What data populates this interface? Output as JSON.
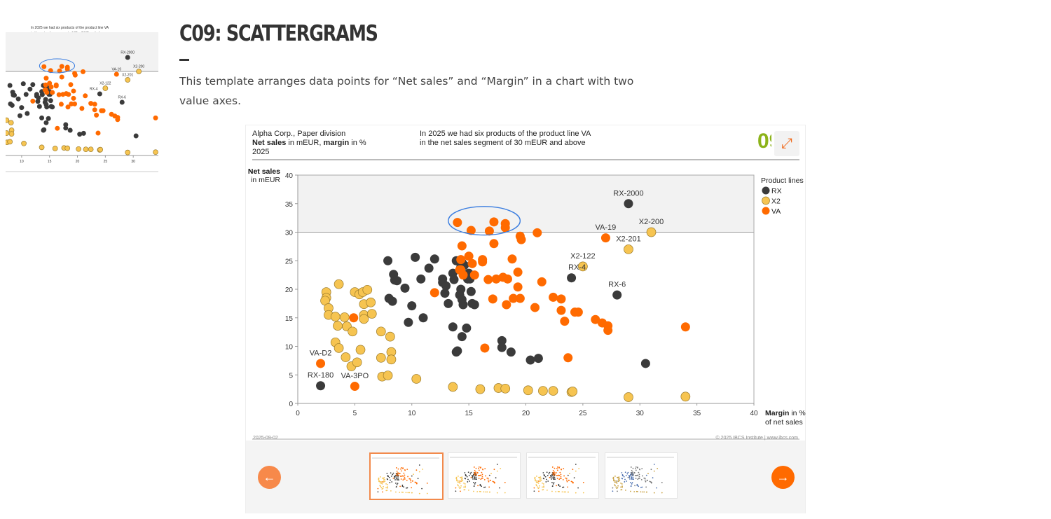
{
  "page": {
    "title": "C09: SCATTERGRAMS",
    "intro": "This template arranges data points for “Net sales” and “Margin” in a chart with two value axes."
  },
  "card": {
    "header_left_line1": "Alpha Corp., Paper division",
    "header_left_bold1": "Net sales",
    "header_left_mid": " in mEUR, ",
    "header_left_bold2": "margin",
    "header_left_end": " in %",
    "header_left_line3": "2025",
    "message_line1": "In 2025 we had six products of the product line VA",
    "message_line2": "in the net sales segment of 30 mEUR and above",
    "badge": "09",
    "expand_icon": "expand-arrows-icon",
    "date": "2025-09-02",
    "copyright": "© 2025 IBCS Institute | www.ibcs.com",
    "prev_icon": "arrow-left-icon",
    "next_icon": "arrow-right-icon",
    "thumbnails": [
      "C09 variant 1",
      "C09 variant 2",
      "C09 variant 3",
      "C09 variant 4"
    ],
    "active_thumbnail": 0
  },
  "colors": {
    "RX": "#3b3b3b",
    "X2": "#f6c451",
    "VA": "#ff6a00",
    "highlight": "#3a7de0",
    "accent": "#f26c1f",
    "badge": "#8cb31a"
  },
  "chart_data": {
    "type": "scatter",
    "ylabel_bold": "Net sales",
    "ylabel_unit": "in mEUR",
    "xlabel_bold": "Margin",
    "xlabel_unit": " in %",
    "xlabel_line2": "of net sales",
    "xlim": [
      0,
      40
    ],
    "ylim": [
      0,
      40
    ],
    "xticks": [
      0,
      5,
      10,
      15,
      20,
      25,
      30,
      35,
      40
    ],
    "yticks": [
      0,
      5,
      10,
      15,
      20,
      25,
      30,
      35,
      40
    ],
    "threshold_y": 30,
    "legend_title": "Product lines",
    "legend_position": "right",
    "highlight_ellipse": {
      "x_range": [
        13.2,
        19.5
      ],
      "y_range": [
        29.5,
        34.5
      ]
    },
    "series": [
      {
        "name": "RX",
        "points": [
          [
            2.0,
            3.1
          ],
          [
            29,
            35
          ],
          [
            24,
            22
          ],
          [
            28,
            19
          ],
          [
            30.5,
            7
          ],
          [
            20.4,
            7.6
          ],
          [
            21.1,
            7.9
          ],
          [
            7.9,
            25
          ],
          [
            10.3,
            25.6
          ],
          [
            8.4,
            22.6
          ],
          [
            8.5,
            21.6
          ],
          [
            8.7,
            21.5
          ],
          [
            9.4,
            20.2
          ],
          [
            8.0,
            18.4
          ],
          [
            8.3,
            17.9
          ],
          [
            10.0,
            17.1
          ],
          [
            9.7,
            14.2
          ],
          [
            11.0,
            15.0
          ],
          [
            10.8,
            21.8
          ],
          [
            11.5,
            23.7
          ],
          [
            12.0,
            25.3
          ],
          [
            12.7,
            21.2
          ],
          [
            12.7,
            21.8
          ],
          [
            13,
            20.6
          ],
          [
            13.9,
            25
          ],
          [
            13.6,
            22.8
          ],
          [
            14.4,
            24.7
          ],
          [
            14.3,
            23.9
          ],
          [
            14.6,
            24.2
          ],
          [
            13.7,
            21.7
          ],
          [
            14.3,
            20
          ],
          [
            14.2,
            19
          ],
          [
            15.2,
            19.6
          ],
          [
            12.9,
            19.3
          ],
          [
            13.2,
            17.5
          ],
          [
            14.4,
            18.2
          ],
          [
            14.5,
            17.3
          ],
          [
            15.3,
            17.5
          ],
          [
            15.5,
            17.3
          ],
          [
            13.6,
            13.4
          ],
          [
            14.8,
            13.2
          ],
          [
            14.4,
            11.7
          ],
          [
            13.9,
            9.0
          ],
          [
            14,
            9.2
          ],
          [
            17.9,
            11.0
          ],
          [
            17.9,
            9.8
          ],
          [
            18.7,
            9.0
          ],
          [
            15,
            22.8
          ],
          [
            15.1,
            21.8
          ],
          [
            14.9,
            21.8
          ]
        ]
      },
      {
        "name": "X2",
        "points": [
          [
            2.5,
            19.5
          ],
          [
            2.5,
            18.5
          ],
          [
            2.4,
            18
          ],
          [
            2.7,
            16.7
          ],
          [
            2.7,
            15.5
          ],
          [
            3.3,
            15.2
          ],
          [
            4.1,
            15.1
          ],
          [
            3.5,
            13.6
          ],
          [
            4.3,
            13.5
          ],
          [
            4.8,
            12.6
          ],
          [
            3.6,
            20.9
          ],
          [
            5.0,
            19.5
          ],
          [
            5.4,
            19.1
          ],
          [
            5.7,
            19.5
          ],
          [
            6.1,
            19.9
          ],
          [
            5.8,
            17.4
          ],
          [
            6.4,
            17.7
          ],
          [
            5.8,
            15.5
          ],
          [
            5.8,
            14.8
          ],
          [
            6.5,
            15.7
          ],
          [
            3.3,
            10.7
          ],
          [
            3.6,
            9.7
          ],
          [
            4.2,
            8.1
          ],
          [
            4.7,
            6.5
          ],
          [
            5.2,
            7.2
          ],
          [
            5.5,
            9.4
          ],
          [
            7.3,
            12.6
          ],
          [
            8.1,
            11.7
          ],
          [
            8.2,
            9
          ],
          [
            7.3,
            8
          ],
          [
            8.2,
            7.7
          ],
          [
            7.4,
            4.7
          ],
          [
            7.9,
            4.9
          ],
          [
            10.4,
            4.3
          ],
          [
            13.6,
            2.9
          ],
          [
            16,
            2.5
          ],
          [
            17.6,
            2.7
          ],
          [
            18.2,
            2.6
          ],
          [
            20.2,
            2.3
          ],
          [
            21.5,
            2.2
          ],
          [
            22.4,
            2.2
          ],
          [
            24,
            2
          ],
          [
            24.1,
            2.1
          ],
          [
            25,
            24
          ],
          [
            29,
            27
          ],
          [
            31,
            30
          ],
          [
            29,
            1.1
          ],
          [
            34,
            1.2
          ]
        ]
      },
      {
        "name": "VA",
        "points": [
          [
            2,
            7
          ],
          [
            5,
            3
          ],
          [
            4.9,
            15
          ],
          [
            14,
            31.7
          ],
          [
            15.2,
            30.3
          ],
          [
            16.8,
            30.2
          ],
          [
            17.2,
            31.8
          ],
          [
            18.2,
            31.5
          ],
          [
            18.2,
            30.8
          ],
          [
            14.4,
            27.6
          ],
          [
            17.2,
            28
          ],
          [
            19.5,
            29.3
          ],
          [
            19.6,
            28.7
          ],
          [
            21,
            29.9
          ],
          [
            27,
            29
          ],
          [
            14.3,
            25.2
          ],
          [
            15,
            25.8
          ],
          [
            16.2,
            25.2
          ],
          [
            15.3,
            24.5
          ],
          [
            14.2,
            23.4
          ],
          [
            16.2,
            24.8
          ],
          [
            19.3,
            23
          ],
          [
            18.8,
            25.3
          ],
          [
            12,
            19.4
          ],
          [
            14.3,
            23.4
          ],
          [
            14.5,
            22.5
          ],
          [
            15.5,
            22.5
          ],
          [
            16.7,
            21.7
          ],
          [
            17.4,
            21.8
          ],
          [
            18,
            22.1
          ],
          [
            18.4,
            21.8
          ],
          [
            19.3,
            20.4
          ],
          [
            17.1,
            18.3
          ],
          [
            18.3,
            17.3
          ],
          [
            18.9,
            18.4
          ],
          [
            19.5,
            18.4
          ],
          [
            20.8,
            16.8
          ],
          [
            21.4,
            21.3
          ],
          [
            22.4,
            18.6
          ],
          [
            23.1,
            18.3
          ],
          [
            23.1,
            16.3
          ],
          [
            23.4,
            14.4
          ],
          [
            24.3,
            16
          ],
          [
            24.6,
            16
          ],
          [
            26.1,
            14.7
          ],
          [
            26.7,
            14.1
          ],
          [
            27.2,
            13.6
          ],
          [
            27.2,
            12.8
          ],
          [
            34,
            13.4
          ],
          [
            16.4,
            9.7
          ],
          [
            23.7,
            8
          ]
        ]
      }
    ],
    "annotations": [
      {
        "label": "RX-2000",
        "x": 29,
        "y": 35
      },
      {
        "label": "X2-200",
        "x": 31,
        "y": 30
      },
      {
        "label": "VA-19",
        "x": 27,
        "y": 29
      },
      {
        "label": "X2-201",
        "x": 29,
        "y": 27
      },
      {
        "label": "X2-122",
        "x": 25,
        "y": 24
      },
      {
        "label": "RX-4",
        "x": 24,
        "y": 22
      },
      {
        "label": "RX-6",
        "x": 28,
        "y": 19
      },
      {
        "label": "VA-D2",
        "x": 2,
        "y": 7
      },
      {
        "label": "RX-180",
        "x": 2,
        "y": 3.1
      },
      {
        "label": "VA-3PO",
        "x": 5,
        "y": 3
      }
    ]
  }
}
